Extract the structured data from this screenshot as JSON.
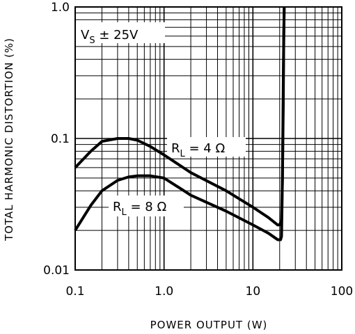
{
  "chart_data": {
    "type": "line",
    "title": "",
    "xlabel": "POWER OUTPUT (W)",
    "ylabel": "TOTAL HARMONIC DISTORTION (%)",
    "xscale": "log",
    "yscale": "log",
    "xlim": [
      0.1,
      100
    ],
    "ylim": [
      0.01,
      1.0
    ],
    "grid": true,
    "x_ticks": [
      "0.1",
      "1.0",
      "10",
      "100"
    ],
    "y_ticks": [
      "0.01",
      "0.1",
      "1.0"
    ],
    "annotations": {
      "supply": {
        "main": "V",
        "sub": "S",
        "rest": " ± 25V"
      },
      "load4": {
        "main": "R",
        "sub": "L",
        "rest": " = 4 Ω"
      },
      "load8": {
        "main": "R",
        "sub": "L",
        "rest": " = 8 Ω"
      }
    },
    "series": [
      {
        "label_ref": "load4",
        "x": [
          0.1,
          0.15,
          0.2,
          0.3,
          0.4,
          0.5,
          0.7,
          1.0,
          2.0,
          5.0,
          10,
          15,
          19,
          20,
          21,
          21.5,
          22,
          22.2,
          22.5
        ],
        "y": [
          0.06,
          0.08,
          0.095,
          0.1,
          0.1,
          0.097,
          0.087,
          0.075,
          0.055,
          0.04,
          0.03,
          0.025,
          0.022,
          0.022,
          0.024,
          0.05,
          0.2,
          0.6,
          1.0
        ]
      },
      {
        "label_ref": "load8",
        "x": [
          0.1,
          0.15,
          0.2,
          0.3,
          0.4,
          0.5,
          0.7,
          1.0,
          1.5,
          2.0,
          5.0,
          10,
          15,
          19,
          20.5,
          21,
          21.5,
          22,
          22.5
        ],
        "y": [
          0.02,
          0.031,
          0.04,
          0.048,
          0.051,
          0.052,
          0.052,
          0.05,
          0.042,
          0.037,
          0.028,
          0.022,
          0.019,
          0.017,
          0.017,
          0.018,
          0.05,
          0.3,
          1.0
        ]
      }
    ]
  }
}
